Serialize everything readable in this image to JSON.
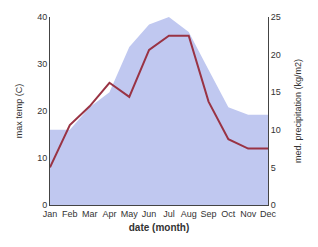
{
  "chart_data": {
    "type": "line",
    "xlabel": "date (month)",
    "ylabel": "max temp (C)",
    "y2label": "med. precipitation (kg/m2)",
    "categories": [
      "Jan",
      "Feb",
      "Mar",
      "Apr",
      "May",
      "Jun",
      "Jul",
      "Aug",
      "Sep",
      "Oct",
      "Nov",
      "Dec"
    ],
    "series": [
      {
        "type": "area",
        "axis": "y2",
        "color": "#c0c8f0",
        "values": [
          10,
          10,
          13,
          15,
          21,
          24,
          25,
          23,
          18,
          13,
          12,
          12
        ]
      },
      {
        "type": "line",
        "color": "#993344",
        "values": [
          8,
          17,
          21,
          26,
          23,
          33,
          36,
          36,
          22,
          14,
          12,
          12
        ]
      }
    ],
    "ylim": [
      0,
      40
    ],
    "yticks": [
      0,
      10,
      20,
      30,
      40
    ],
    "y2lim": [
      0,
      25
    ],
    "y2ticks": [
      0,
      5,
      10,
      15,
      20,
      25
    ],
    "grid": false
  }
}
